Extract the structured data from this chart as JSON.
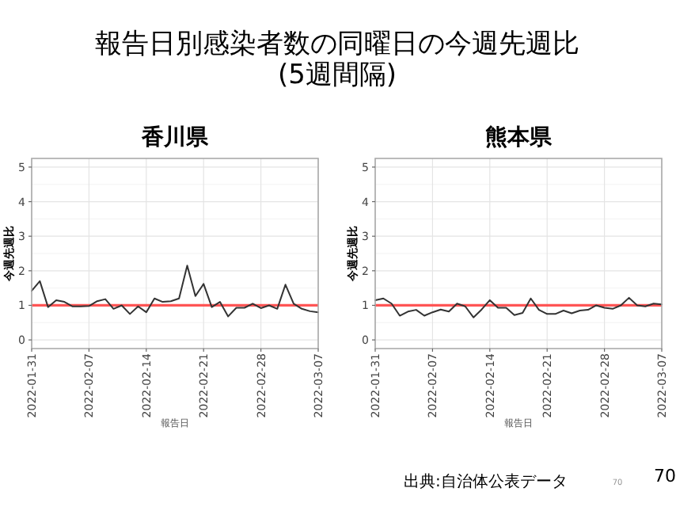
{
  "chart_data": [
    {
      "type": "line",
      "title": "香川県",
      "xlabel": "報告日",
      "ylabel": "今週先週比",
      "annotations": [
        "報告日別感染者数の同曜日の今週先週比\n(5週間隔)"
      ],
      "x": [
        "2022-01-31",
        "2022-02-01",
        "2022-02-02",
        "2022-02-03",
        "2022-02-04",
        "2022-02-05",
        "2022-02-06",
        "2022-02-07",
        "2022-02-08",
        "2022-02-09",
        "2022-02-10",
        "2022-02-11",
        "2022-02-12",
        "2022-02-13",
        "2022-02-14",
        "2022-02-15",
        "2022-02-16",
        "2022-02-17",
        "2022-02-18",
        "2022-02-19",
        "2022-02-20",
        "2022-02-21",
        "2022-02-22",
        "2022-02-23",
        "2022-02-24",
        "2022-02-25",
        "2022-02-26",
        "2022-02-27",
        "2022-02-28",
        "2022-03-01",
        "2022-03-02",
        "2022-03-03",
        "2022-03-04",
        "2022-03-05",
        "2022-03-06",
        "2022-03-07"
      ],
      "series": [
        {
          "color": "#333333",
          "values": [
            1.42,
            1.7,
            0.95,
            1.15,
            1.1,
            0.97,
            0.97,
            0.98,
            1.12,
            1.18,
            0.9,
            1.0,
            0.75,
            0.97,
            0.8,
            1.2,
            1.1,
            1.12,
            1.2,
            2.15,
            1.27,
            1.62,
            0.95,
            1.1,
            0.68,
            0.93,
            0.93,
            1.05,
            0.92,
            1.0,
            0.9,
            1.6,
            1.05,
            0.9,
            0.83,
            0.8
          ]
        }
      ],
      "xlim": [
        "2022-01-31",
        "2022-03-07"
      ],
      "xticks": [
        "2022-01-31",
        "2022-02-07",
        "2022-02-14",
        "2022-02-21",
        "2022-02-28",
        "2022-03-07"
      ],
      "ylim": [
        -0.25,
        5.25
      ],
      "yticks": [
        0,
        1,
        2,
        3,
        4,
        5
      ],
      "grid": true,
      "ref_lines": [
        {
          "axis": "y",
          "value": 1,
          "color": "#ff5555"
        }
      ]
    },
    {
      "type": "line",
      "title": "熊本県",
      "xlabel": "報告日",
      "ylabel": "今週先週比",
      "annotations": [
        "出典:自治体公表データ",
        "70",
        "70"
      ],
      "x": [
        "2022-01-31",
        "2022-02-01",
        "2022-02-02",
        "2022-02-03",
        "2022-02-04",
        "2022-02-05",
        "2022-02-06",
        "2022-02-07",
        "2022-02-08",
        "2022-02-09",
        "2022-02-10",
        "2022-02-11",
        "2022-02-12",
        "2022-02-13",
        "2022-02-14",
        "2022-02-15",
        "2022-02-16",
        "2022-02-17",
        "2022-02-18",
        "2022-02-19",
        "2022-02-20",
        "2022-02-21",
        "2022-02-22",
        "2022-02-23",
        "2022-02-24",
        "2022-02-25",
        "2022-02-26",
        "2022-02-27",
        "2022-02-28",
        "2022-03-01",
        "2022-03-02",
        "2022-03-03",
        "2022-03-04",
        "2022-03-05",
        "2022-03-06",
        "2022-03-07"
      ],
      "series": [
        {
          "color": "#333333",
          "values": [
            1.15,
            1.2,
            1.05,
            0.7,
            0.82,
            0.87,
            0.7,
            0.8,
            0.88,
            0.82,
            1.05,
            0.97,
            0.65,
            0.88,
            1.15,
            0.93,
            0.93,
            0.72,
            0.78,
            1.2,
            0.87,
            0.75,
            0.75,
            0.85,
            0.77,
            0.85,
            0.87,
            1.0,
            0.93,
            0.9,
            1.0,
            1.22,
            1.0,
            0.97,
            1.05,
            1.03
          ]
        }
      ],
      "xlim": [
        "2022-01-31",
        "2022-03-07"
      ],
      "xticks": [
        "2022-01-31",
        "2022-02-07",
        "2022-02-14",
        "2022-02-21",
        "2022-02-28",
        "2022-03-07"
      ],
      "ylim": [
        -0.25,
        5.25
      ],
      "yticks": [
        0,
        1,
        2,
        3,
        4,
        5
      ],
      "grid": true,
      "ref_lines": [
        {
          "axis": "y",
          "value": 1,
          "color": "#ff5555"
        }
      ]
    }
  ]
}
